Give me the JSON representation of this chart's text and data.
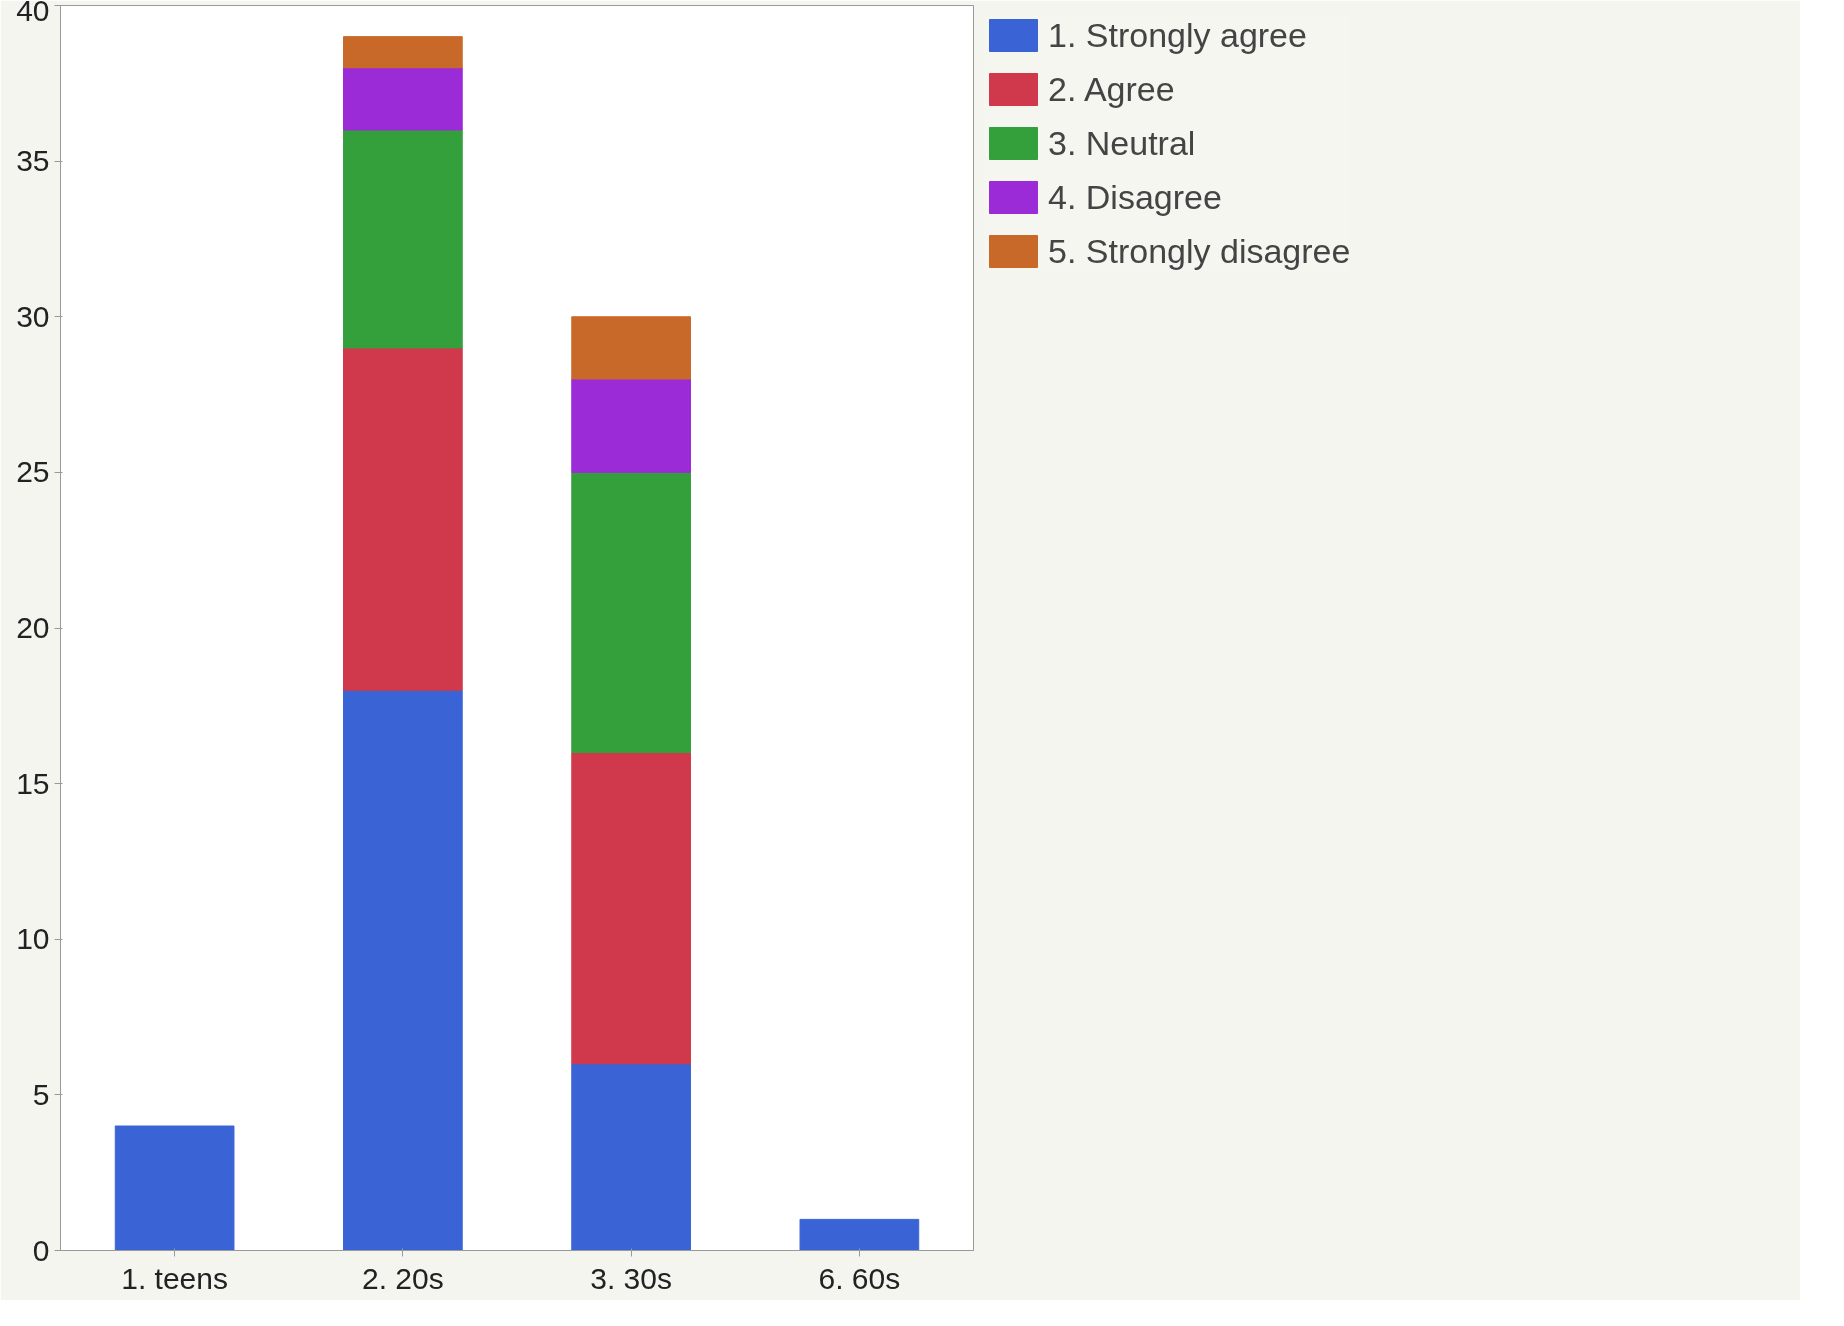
{
  "chart_data": {
    "type": "bar",
    "stacked": true,
    "categories": [
      "1. teens",
      "2. 20s",
      "3. 30s",
      "6. 60s"
    ],
    "series": [
      {
        "name": "1. Strongly agree",
        "color": "#3a64d6",
        "values": [
          4,
          18,
          6,
          1
        ]
      },
      {
        "name": "2. Agree",
        "color": "#d0394b",
        "values": [
          0,
          11,
          10,
          0
        ]
      },
      {
        "name": "3. Neutral",
        "color": "#34a03c",
        "values": [
          0,
          7,
          9,
          0
        ]
      },
      {
        "name": "4. Disagree",
        "color": "#9b2bd6",
        "values": [
          0,
          2,
          3,
          0
        ]
      },
      {
        "name": "5. Strongly disagree",
        "color": "#c8692a",
        "values": [
          0,
          1,
          2,
          0
        ]
      }
    ],
    "ylim": [
      0,
      40
    ],
    "yticks": [
      0,
      5,
      10,
      15,
      20,
      25,
      30,
      35,
      40
    ],
    "grid": false,
    "legend": "top right"
  }
}
